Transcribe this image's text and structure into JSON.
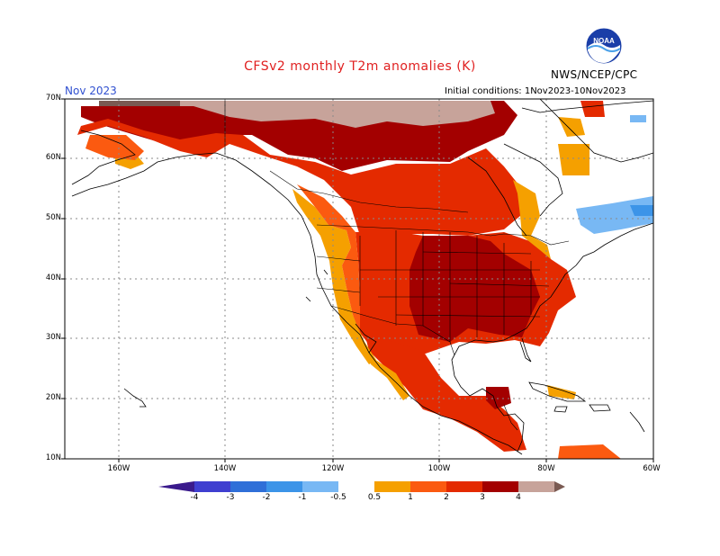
{
  "header": {
    "title": "CFSv2 monthly T2m anomalies (K)",
    "month": "Nov 2023",
    "agency": "NWS/NCEP/CPC",
    "initial_conditions": "Initial conditions: 1Nov2023-10Nov2023",
    "logo_text": "NOAA"
  },
  "axes": {
    "lat_labels": [
      "70N",
      "60N",
      "50N",
      "40N",
      "30N",
      "20N",
      "10N"
    ],
    "lon_labels": [
      "160W",
      "140W",
      "120W",
      "100W",
      "80W",
      "60W"
    ]
  },
  "legend": {
    "tick_labels": [
      "-4",
      "-3",
      "-2",
      "-1",
      "-0.5",
      "0.5",
      "1",
      "2",
      "3",
      "4"
    ],
    "colors": {
      "lt_m4": "#3a1a8c",
      "m4_m3": "#3f3fd0",
      "m3_m2": "#2f6fd8",
      "m2_m1": "#3c94e8",
      "m1_m05": "#78b8f4",
      "neutral": "#ffffff",
      "p05_p1": "#f5a000",
      "p1_p2": "#fb5a10",
      "p2_p3": "#e42a00",
      "p3_p4": "#a30000",
      "p4_p5": "#c7a39a",
      "gt_p5": "#7a5a52"
    }
  },
  "map_colors": {
    "grid": "#8a8a8a",
    "coast": "#000000",
    "background": "#ffffff"
  }
}
